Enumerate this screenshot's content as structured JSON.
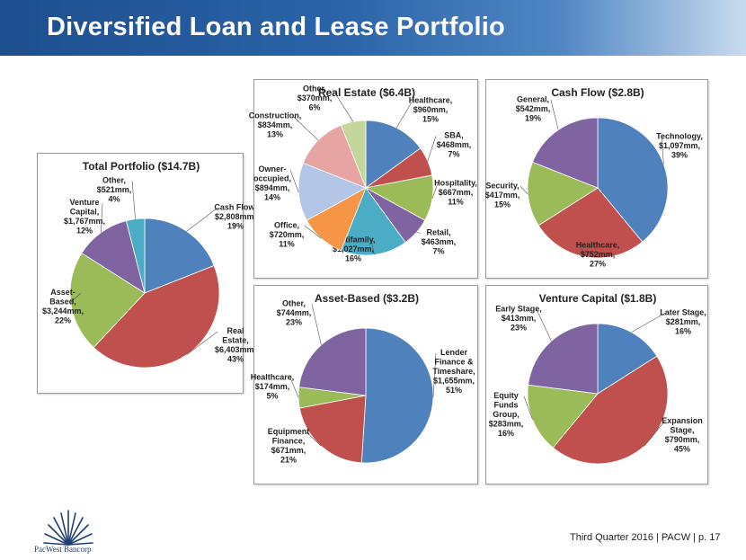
{
  "header": {
    "title": "Diversified Loan and Lease Portfolio"
  },
  "footer": {
    "text": "Third Quarter 2016 | PACW | p. 17",
    "logo_text": "PacWest Bancorp",
    "logo_icon": "starburst-icon"
  },
  "colors": {
    "header": "#2a63a8",
    "blue": "#4f81bd",
    "red": "#c0504d",
    "green": "#9bbb59",
    "purple": "#8064a2",
    "teal": "#4bacc6",
    "orange": "#f79646",
    "lavender": "#b4c6e7",
    "pink": "#e6a5a3",
    "lightgreen": "#c4d79b"
  },
  "chart_data": [
    {
      "type": "pie",
      "title": "Total Portfolio ($14.7B)",
      "slices": [
        {
          "label": [
            "Cash Flow,",
            "$2,808mm,",
            "19%"
          ],
          "value": 19,
          "color": "#4f81bd"
        },
        {
          "label": [
            "Real",
            "Estate,",
            "$6,403mm,",
            "43%"
          ],
          "value": 43,
          "color": "#c0504d"
        },
        {
          "label": [
            "Asset-",
            "Based,",
            "$3,244mm,",
            "22%"
          ],
          "value": 22,
          "color": "#9bbb59"
        },
        {
          "label": [
            "Venture",
            "Capital,",
            "$1,767mm,",
            "12%"
          ],
          "value": 12,
          "color": "#8064a2"
        },
        {
          "label": [
            "Other,",
            "$521mm,",
            "4%"
          ],
          "value": 4,
          "color": "#4bacc6"
        }
      ]
    },
    {
      "type": "pie",
      "title": "Real Estate ($6.4B)",
      "slices": [
        {
          "label": [
            "Healthcare,",
            "$960mm,",
            "15%"
          ],
          "value": 15,
          "color": "#4f81bd"
        },
        {
          "label": [
            "SBA,",
            "$468mm,",
            "7%"
          ],
          "value": 7,
          "color": "#c0504d"
        },
        {
          "label": [
            "Hospitality,",
            "$667mm,",
            "11%"
          ],
          "value": 11,
          "color": "#9bbb59"
        },
        {
          "label": [
            "Retail,",
            "$463mm,",
            "7%"
          ],
          "value": 7,
          "color": "#8064a2"
        },
        {
          "label": [
            "Multifamily,",
            "$1,027mm,",
            "16%"
          ],
          "value": 16,
          "color": "#4bacc6"
        },
        {
          "label": [
            "Office,",
            "$720mm,",
            "11%"
          ],
          "value": 11,
          "color": "#f79646"
        },
        {
          "label": [
            "Owner-",
            "occupied,",
            "$894mm,",
            "14%"
          ],
          "value": 14,
          "color": "#b4c6e7"
        },
        {
          "label": [
            "Construction,",
            "$834mm,",
            "13%"
          ],
          "value": 13,
          "color": "#e6a5a3"
        },
        {
          "label": [
            "Other,",
            "$370mm,",
            "6%"
          ],
          "value": 6,
          "color": "#c4d79b"
        }
      ]
    },
    {
      "type": "pie",
      "title": "Cash Flow ($2.8B)",
      "slices": [
        {
          "label": [
            "Technology,",
            "$1,097mm,",
            "39%"
          ],
          "value": 39,
          "color": "#4f81bd"
        },
        {
          "label": [
            "Healthcare,",
            "$752mm,",
            "27%"
          ],
          "value": 27,
          "color": "#c0504d"
        },
        {
          "label": [
            "Security,",
            "$417mm,",
            "15%"
          ],
          "value": 15,
          "color": "#9bbb59"
        },
        {
          "label": [
            "General,",
            "$542mm,",
            "19%"
          ],
          "value": 19,
          "color": "#8064a2"
        }
      ]
    },
    {
      "type": "pie",
      "title": "Asset-Based ($3.2B)",
      "slices": [
        {
          "label": [
            "Lender",
            "Finance &",
            "Timeshare,",
            "$1,655mm,",
            "51%"
          ],
          "value": 51,
          "color": "#4f81bd"
        },
        {
          "label": [
            "Equipment",
            "Finance,",
            "$671mm,",
            "21%"
          ],
          "value": 21,
          "color": "#c0504d"
        },
        {
          "label": [
            "Healthcare,",
            "$174mm,",
            "5%"
          ],
          "value": 5,
          "color": "#9bbb59"
        },
        {
          "label": [
            "Other,",
            "$744mm,",
            "23%"
          ],
          "value": 23,
          "color": "#8064a2"
        }
      ]
    },
    {
      "type": "pie",
      "title": "Venture Capital ($1.8B)",
      "slices": [
        {
          "label": [
            "Later Stage,",
            "$281mm,",
            "16%"
          ],
          "value": 16,
          "color": "#4f81bd"
        },
        {
          "label": [
            "Expansion",
            "Stage,",
            "$790mm,",
            "45%"
          ],
          "value": 45,
          "color": "#c0504d"
        },
        {
          "label": [
            "Equity",
            "Funds",
            "Group,",
            "$283mm,",
            "16%"
          ],
          "value": 16,
          "color": "#9bbb59"
        },
        {
          "label": [
            "Early Stage,",
            "$413mm,",
            "23%"
          ],
          "value": 23,
          "color": "#8064a2"
        }
      ]
    }
  ]
}
